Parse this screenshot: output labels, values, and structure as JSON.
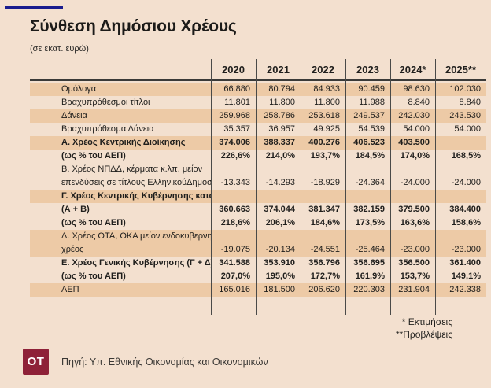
{
  "colors": {
    "background": "#f3e0cf",
    "row_shade": "#edcaa6",
    "accent_line": "#1a1c8e",
    "logo_background": "#8e2138",
    "text": "#1f1e1c"
  },
  "chart_data": {
    "type": "table",
    "title": "Σύνθεση Δημόσιου Χρέους",
    "subtitle": "(σε εκατ. ευρώ)",
    "columns": [
      "2020",
      "2021",
      "2022",
      "2023",
      "2024*",
      "2025**"
    ],
    "rows": [
      {
        "label": "Ομόλογα",
        "bold": false,
        "shade": true,
        "values": [
          "66.880",
          "80.794",
          "84.933",
          "90.459",
          "98.630",
          "102.030"
        ]
      },
      {
        "label": "Βραχυπρόθεσμοι τίτλοι",
        "bold": false,
        "shade": false,
        "values": [
          "11.801",
          "11.800",
          "11.800",
          "11.988",
          "8.840",
          "8.840"
        ]
      },
      {
        "label": "Δάνεια",
        "bold": false,
        "shade": true,
        "values": [
          "259.968",
          "258.786",
          "253.618",
          "249.537",
          "242.030",
          "243.530"
        ]
      },
      {
        "label": "Βραχυπρόθεσμα Δάνεια",
        "bold": false,
        "shade": false,
        "values": [
          "35.357",
          "36.957",
          "49.925",
          "54.539",
          "54.000",
          "54.000"
        ]
      },
      {
        "label": "Α. Χρέος Κεντρικής Διοίκησης",
        "bold": true,
        "shade": true,
        "values": [
          "374.006",
          "388.337",
          "400.276",
          "406.523",
          "403.500",
          ""
        ]
      },
      {
        "label": "(ως % του ΑΕΠ)",
        "bold": true,
        "shade": false,
        "values": [
          "226,6%",
          "214,0%",
          "193,7%",
          "184,5%",
          "174,0%",
          "168,5%"
        ]
      },
      {
        "label": "Β. Χρέος ΝΠΔΔ, κέρματα κ.λπ. μείον",
        "bold": false,
        "shade": false,
        "values": [
          "",
          "",
          "",
          "",
          "",
          ""
        ]
      },
      {
        "label": "επενδύσεις σε τίτλους ΕλληνικούΔημοσίου",
        "bold": false,
        "shade": false,
        "values": [
          "-13.343",
          "-14.293",
          "-18.929",
          "-24.364",
          "-24.000",
          "-24.000"
        ]
      },
      {
        "label": "Γ. Χρέος Κεντρικής Κυβέρνησης κατά ESA",
        "bold": true,
        "shade": true,
        "values": [
          "",
          "",
          "",
          "",
          "",
          ""
        ]
      },
      {
        "label": "(Α + Β)",
        "bold": true,
        "shade": false,
        "values": [
          "360.663",
          "374.044",
          "381.347",
          "382.159",
          "379.500",
          "384.400"
        ]
      },
      {
        "label": "(ως % του ΑΕΠ)",
        "bold": true,
        "shade": false,
        "values": [
          "218,6%",
          "206,1%",
          "184,6%",
          "173,5%",
          "163,6%",
          "158,6%"
        ]
      },
      {
        "label": "Δ. Χρέος ΟΤΑ, ΟΚΑ μείον ενδοκυβερνητικό",
        "bold": false,
        "shade": true,
        "values": [
          "",
          "",
          "",
          "",
          "",
          ""
        ]
      },
      {
        "label": "χρέος",
        "bold": false,
        "shade": true,
        "values": [
          "-19.075",
          "-20.134",
          "-24.551",
          "-25.464",
          "-23.000",
          "-23.000"
        ]
      },
      {
        "label": "Ε. Χρέος Γενικής Κυβέρνησης (Γ + Δ)",
        "bold": true,
        "shade": false,
        "values": [
          "341.588",
          "353.910",
          "356.796",
          "356.695",
          "356.500",
          "361.400"
        ]
      },
      {
        "label": "(ως % του ΑΕΠ)",
        "bold": true,
        "shade": false,
        "values": [
          "207,0%",
          "195,0%",
          "172,7%",
          "161,9%",
          "153,7%",
          "149,1%"
        ]
      },
      {
        "label": "ΑΕΠ",
        "bold": false,
        "shade": true,
        "values": [
          "165.016",
          "181.500",
          "206.620",
          "220.303",
          "231.904",
          "242.338"
        ]
      }
    ],
    "notes": [
      "* Εκτιμήσεις",
      "**Προβλέψεις"
    ],
    "legend_position": "none",
    "grid": "column-separators"
  },
  "footer": {
    "logo_text": "OT",
    "source": "Πηγή: Υπ. Εθνικής Οικονομίας και Οικονομικών"
  }
}
